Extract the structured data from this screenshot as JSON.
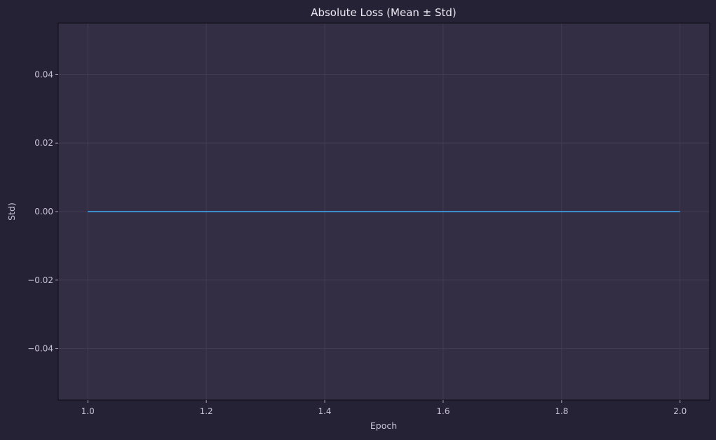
{
  "chart_data": {
    "type": "line",
    "title": "Absolute Loss (Mean ± Std)",
    "xlabel": "Epoch",
    "ylabel": "Std)",
    "xlim": [
      0.95,
      2.05
    ],
    "ylim": [
      -0.055,
      0.055
    ],
    "x_ticks": [
      1.0,
      1.2,
      1.4,
      1.6,
      1.8,
      2.0
    ],
    "x_tick_labels": [
      "1.0",
      "1.2",
      "1.4",
      "1.6",
      "1.8",
      "2.0"
    ],
    "y_ticks": [
      0.04,
      0.02,
      0.0,
      -0.02,
      -0.04
    ],
    "y_tick_labels": [
      "0.04",
      "0.02",
      "0.00",
      "−0.02",
      "−0.04"
    ],
    "grid": true,
    "series": [
      {
        "x": [
          1.0,
          2.0
        ],
        "values": [
          0.0,
          0.0
        ]
      }
    ]
  },
  "colors": {
    "background": "#262236",
    "plot_background": "#332e44",
    "grid": "#453f57",
    "line": "#3d9be0",
    "text": "#c9c3d6",
    "title": "#ece9f2",
    "frame": "#0e0c14"
  }
}
